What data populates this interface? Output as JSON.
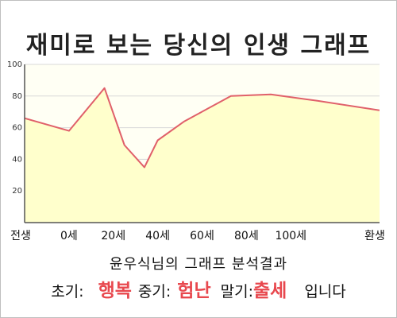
{
  "title": "재미로 보는 당신의 인생 그래프",
  "chart_data": {
    "type": "area",
    "categories": [
      "전생",
      "0세",
      "20세",
      "40세",
      "60세",
      "80세",
      "100세",
      "환생"
    ],
    "x": [
      -20,
      0,
      20,
      40,
      60,
      80,
      100,
      120
    ],
    "series": [
      {
        "x": [
          -20,
          0,
          16,
          25,
          34,
          40,
          52,
          73,
          91,
          112,
          140
        ],
        "values": [
          66,
          58,
          85,
          49,
          35,
          52,
          64,
          80,
          81,
          77,
          71
        ]
      }
    ],
    "ylim": [
      0,
      100
    ],
    "yticks": [
      20,
      40,
      60,
      80,
      100
    ],
    "grid": true,
    "line_color": "#e0606a",
    "fill_color": "#ffffcc"
  },
  "result": {
    "heading": "윤우식님의 그래프 분석결과",
    "early_label": "초기:",
    "early_value": "행복",
    "mid_label": "중기:",
    "mid_value": "험난",
    "late_label": "말기:",
    "late_value": "출세",
    "suffix": "입니다"
  }
}
